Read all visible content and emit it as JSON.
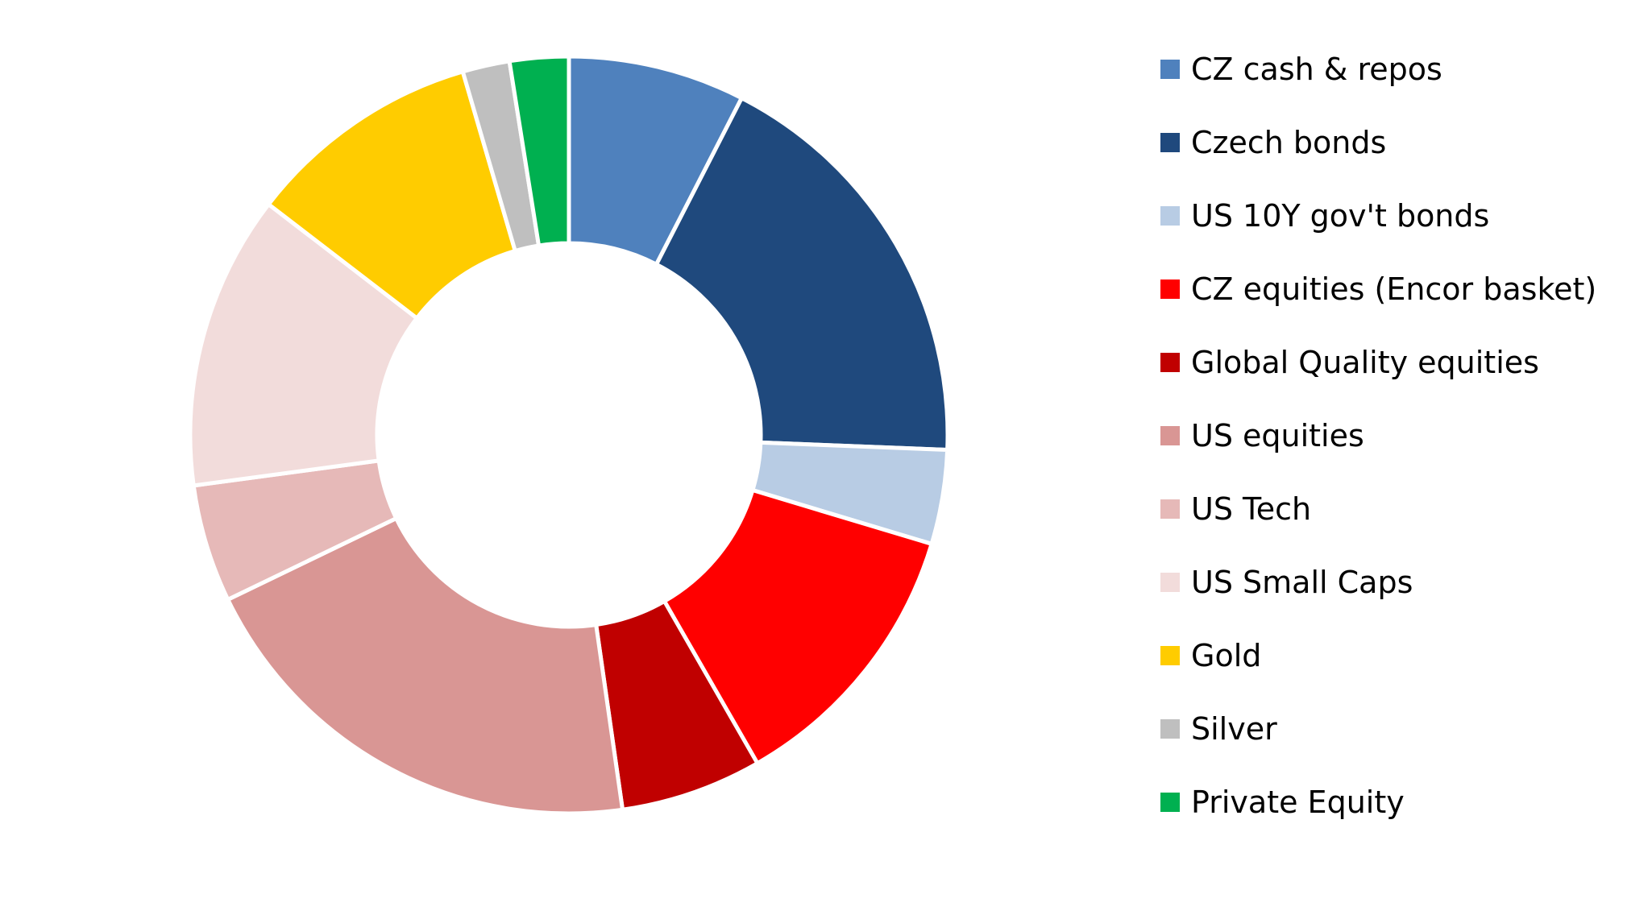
{
  "chart_data": {
    "type": "pie",
    "variant": "donut",
    "title": "",
    "legend_position": "right",
    "categories": [
      "CZ cash & repos",
      "Czech bonds",
      "US 10Y gov't bonds",
      "CZ equities (Encor basket)",
      "Global Quality equities",
      "US equities",
      "US Tech",
      "US Small Caps",
      "Gold",
      "Silver",
      "Private Equity"
    ],
    "values": [
      7.5,
      18.0,
      4.0,
      12.0,
      6.0,
      20.0,
      5.0,
      12.5,
      10.0,
      2.0,
      2.5
    ],
    "colors": [
      "#4F81BD",
      "#1F497D",
      "#B8CCE4",
      "#FF0000",
      "#C00000",
      "#D99694",
      "#E6B9B8",
      "#F2DCDB",
      "#FFCC00",
      "#BFBFBF",
      "#00B050"
    ]
  }
}
